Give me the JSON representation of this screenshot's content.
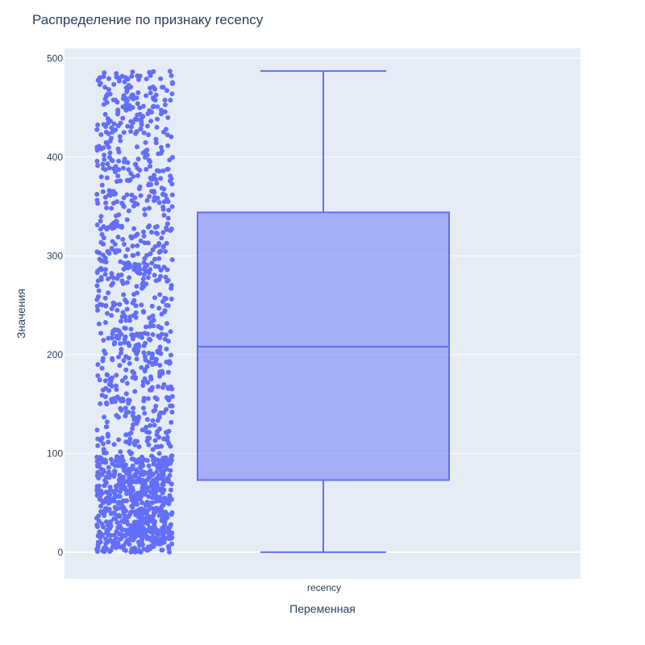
{
  "chart_data": {
    "type": "box",
    "title": "Распределение по признаку recency",
    "xlabel": "Переменная",
    "ylabel": "Значения",
    "categories": [
      "recency"
    ],
    "ylim": [
      -27,
      510
    ],
    "yticks": [
      0,
      100,
      200,
      300,
      400,
      500
    ],
    "grid": true,
    "show_points": "all",
    "box": {
      "name": "recency",
      "min": 0,
      "q1": 73,
      "median": 208,
      "q3": 344,
      "max": 487
    },
    "colors": {
      "marker": "#636efa",
      "box_fill": "rgba(99,110,250,0.5)",
      "plot_bg": "#e5ecf6",
      "grid": "#ffffff",
      "text": "#2a3f5f"
    }
  }
}
